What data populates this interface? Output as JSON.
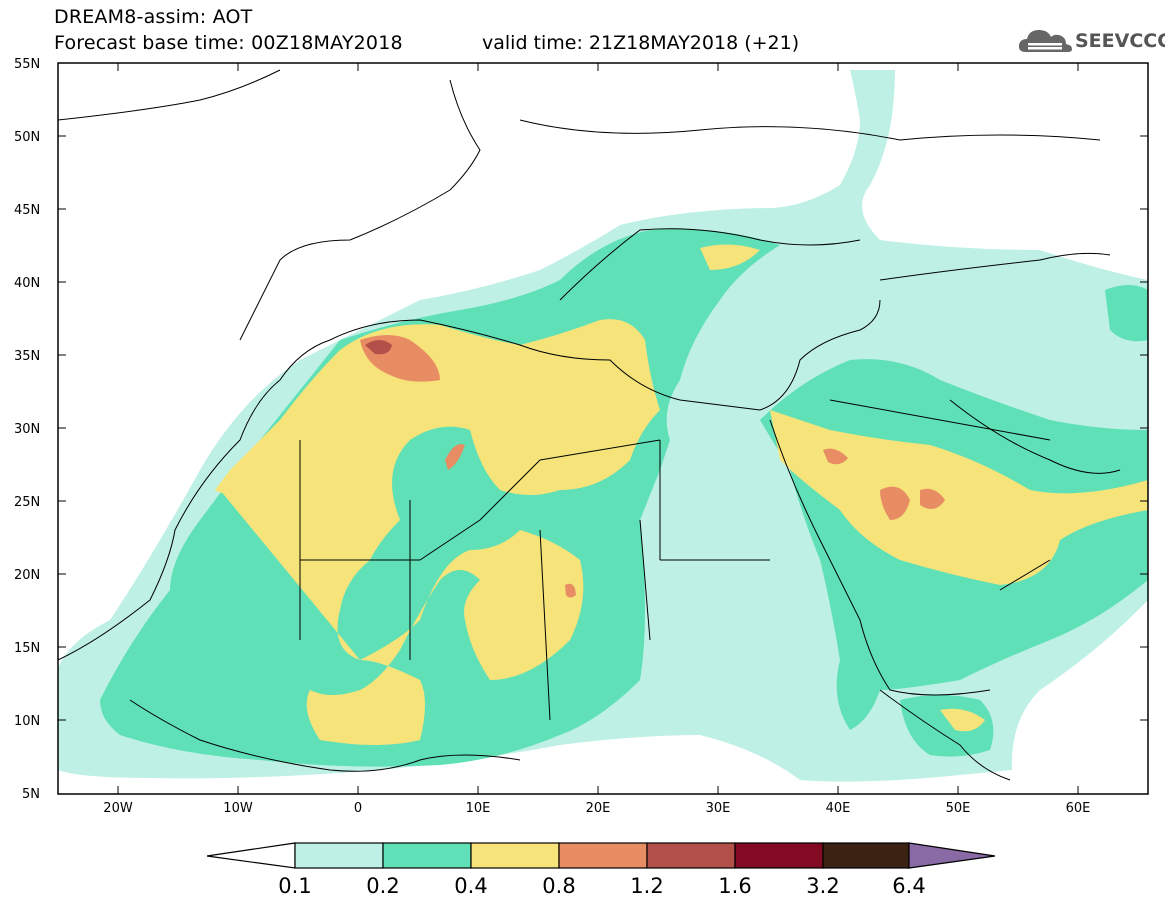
{
  "header": {
    "line1": "DREAM8-assim: AOT",
    "line2": "Forecast base time: 00Z18MAY2018",
    "line3": "valid time: 21Z18MAY2018 (+21)"
  },
  "logo": {
    "text": "SEEVCCC",
    "icon": "cloud-icon"
  },
  "map": {
    "lat_labels": [
      "55N",
      "50N",
      "45N",
      "40N",
      "35N",
      "30N",
      "25N",
      "20N",
      "15N",
      "10N",
      "5N"
    ],
    "lon_labels": [
      "20W",
      "10W",
      "0",
      "10E",
      "20E",
      "30E",
      "40E",
      "50E",
      "60E"
    ],
    "lat_range": [
      5,
      55
    ],
    "lon_range": [
      -25,
      65
    ]
  },
  "colorbar": {
    "labels": [
      "0.1",
      "0.2",
      "0.4",
      "0.8",
      "1.2",
      "1.6",
      "3.2",
      "6.4"
    ],
    "colors": [
      "#ffffff",
      "#bff0e6",
      "#5fe0b6",
      "#f6e37a",
      "#e88c64",
      "#b4504a",
      "#820a22",
      "#3a2312",
      "#8a6aa4"
    ]
  }
}
